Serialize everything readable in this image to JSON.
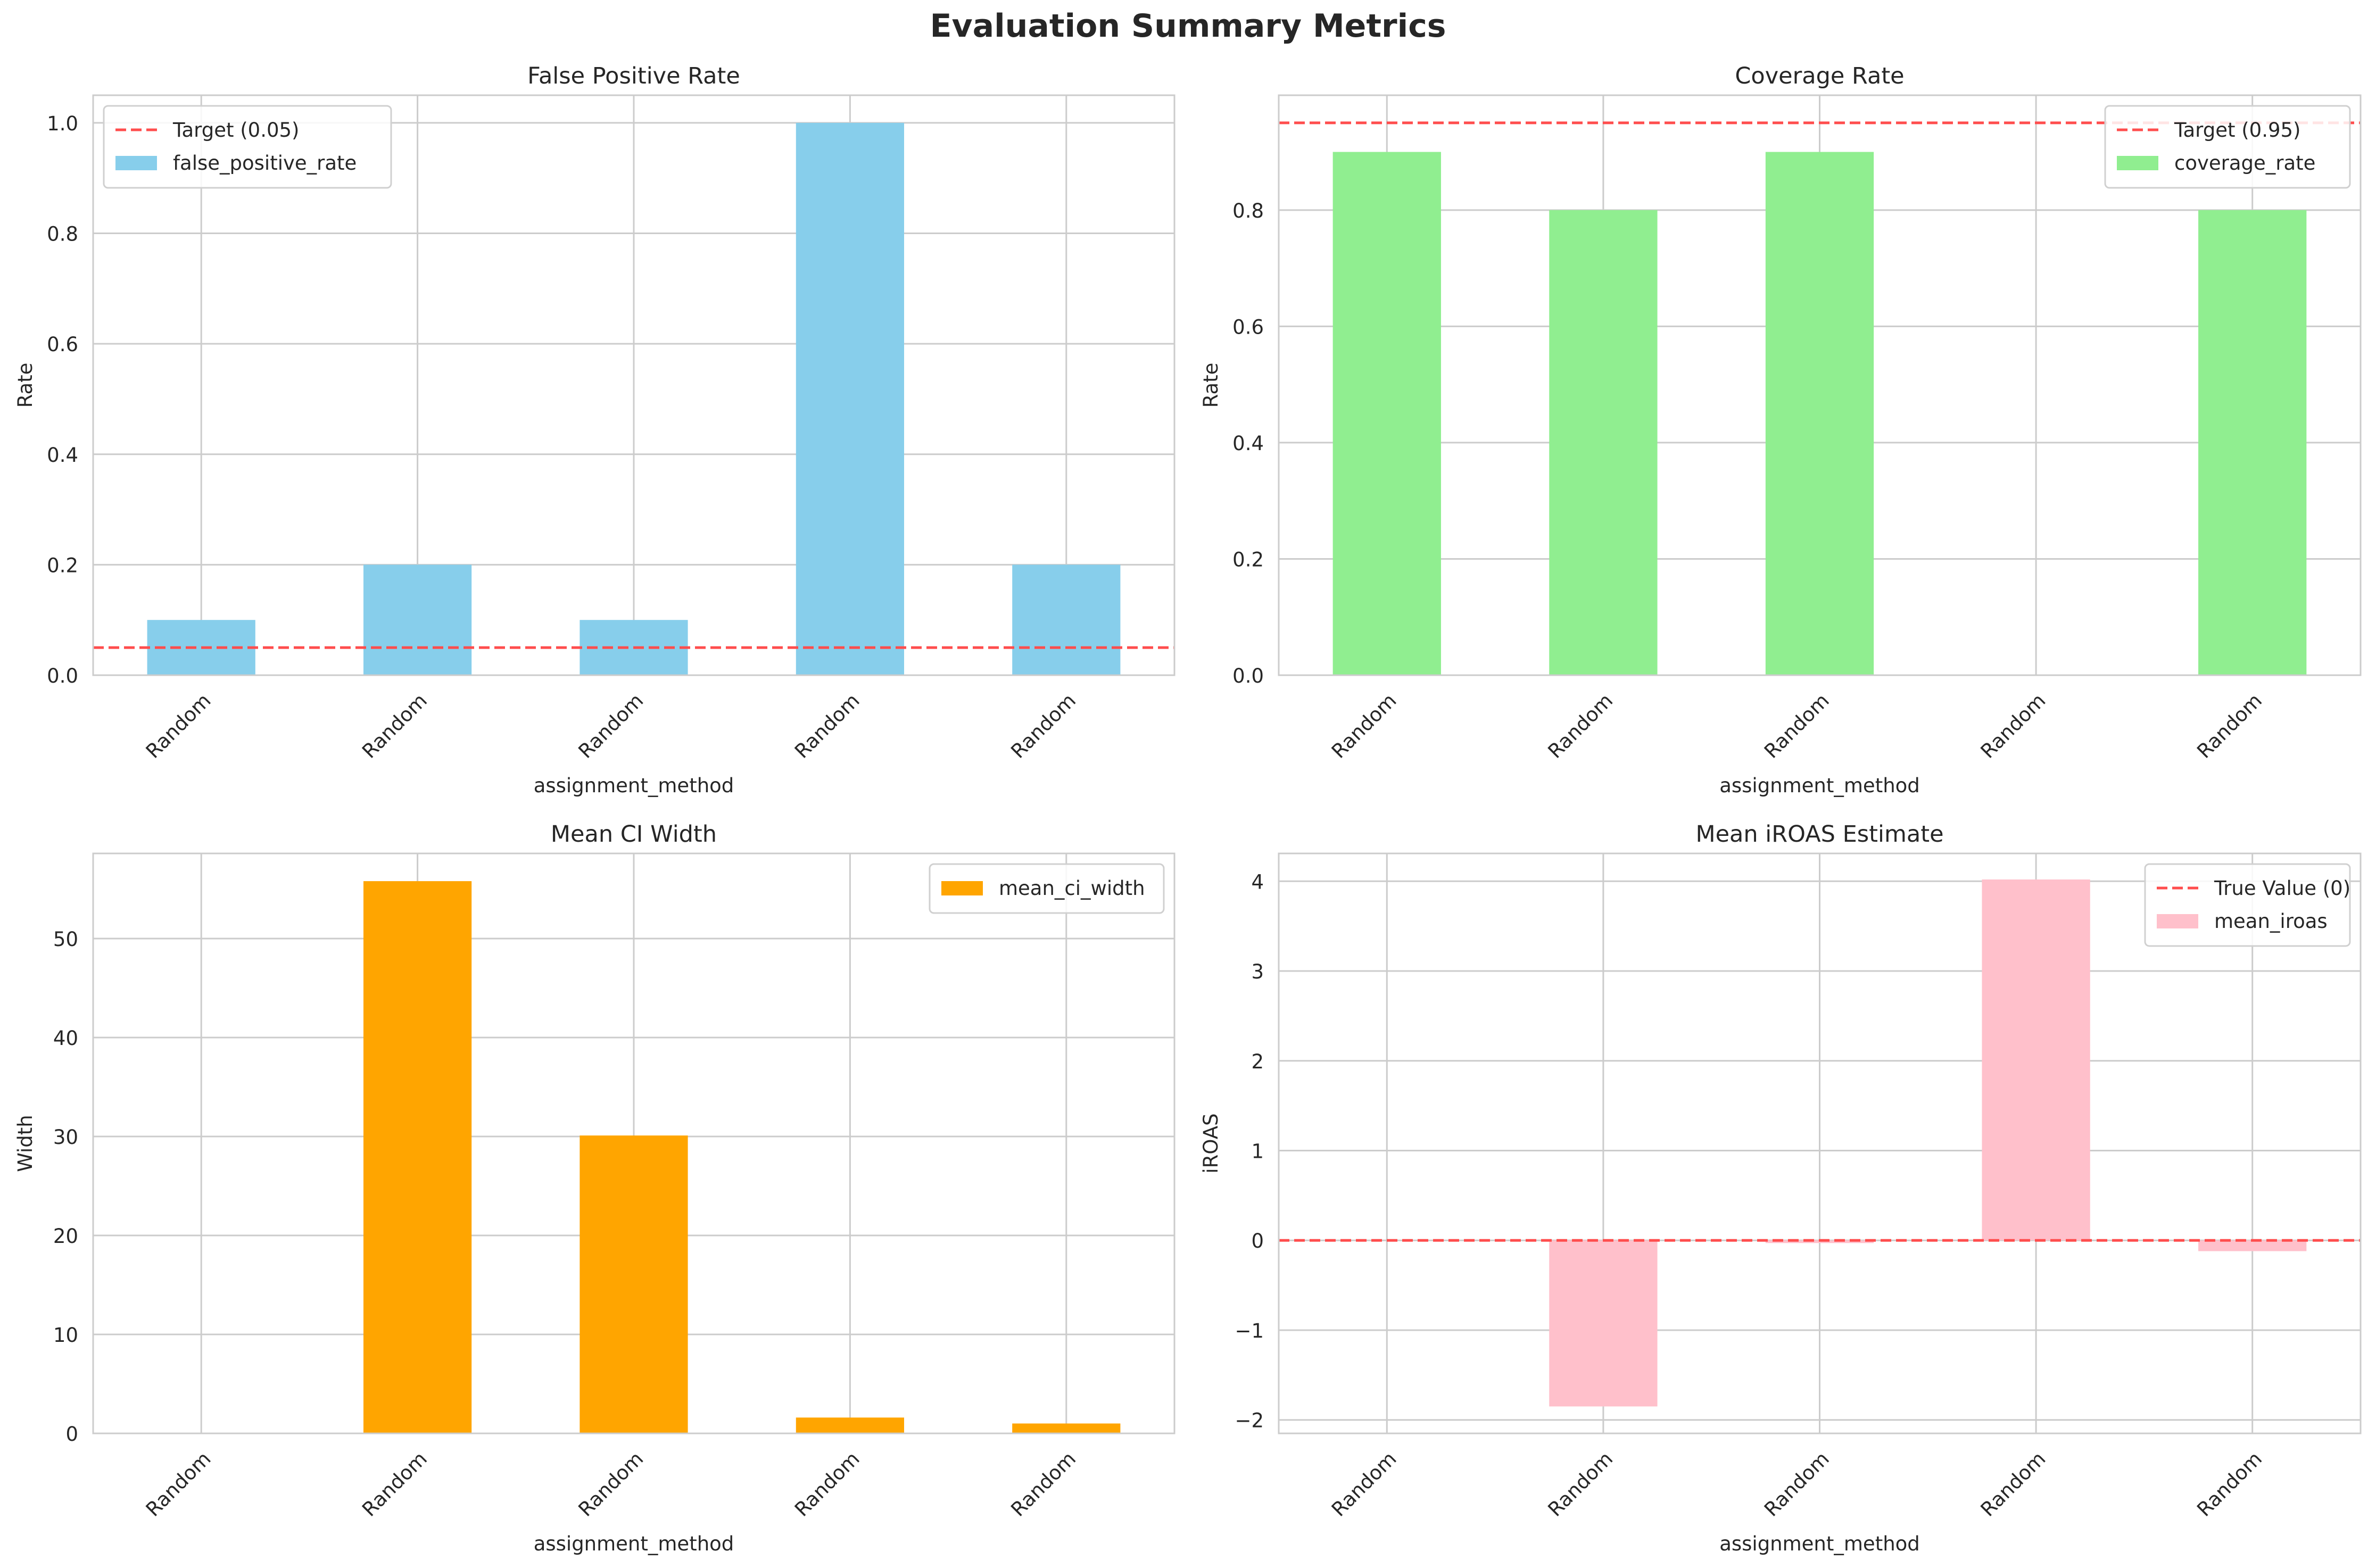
{
  "figure": {
    "title": "Evaluation Summary Metrics"
  },
  "chart_data": [
    {
      "type": "bar",
      "title": "False Positive Rate",
      "xlabel": "assignment_method",
      "ylabel": "Rate",
      "categories": [
        "Random",
        "Random",
        "Random",
        "Random",
        "Random"
      ],
      "series": [
        {
          "name": "false_positive_rate",
          "values": [
            0.1,
            0.2,
            0.1,
            1.0,
            0.2
          ],
          "color": "#87CEEB"
        }
      ],
      "reference_line": {
        "label": "Target (0.05)",
        "y": 0.05,
        "color": "#ff4d4d",
        "style": "dashed"
      },
      "ylim": [
        0,
        1.05
      ],
      "yticks": [
        0.0,
        0.2,
        0.4,
        0.6,
        0.8,
        1.0
      ],
      "ytick_labels": [
        "0.0",
        "0.2",
        "0.4",
        "0.6",
        "0.8",
        "1.0"
      ],
      "grid": true,
      "legend": "top-left"
    },
    {
      "type": "bar",
      "title": "Coverage Rate",
      "xlabel": "assignment_method",
      "ylabel": "Rate",
      "categories": [
        "Random",
        "Random",
        "Random",
        "Random",
        "Random"
      ],
      "series": [
        {
          "name": "coverage_rate",
          "values": [
            0.9,
            0.8,
            0.9,
            0.0,
            0.8
          ],
          "color": "#90EE90"
        }
      ],
      "reference_line": {
        "label": "Target (0.95)",
        "y": 0.95,
        "color": "#ff4d4d",
        "style": "dashed"
      },
      "ylim": [
        0,
        0.9975
      ],
      "yticks": [
        0.0,
        0.2,
        0.4,
        0.6,
        0.8
      ],
      "ytick_labels": [
        "0.0",
        "0.2",
        "0.4",
        "0.6",
        "0.8"
      ],
      "grid": true,
      "legend": "top-right"
    },
    {
      "type": "bar",
      "title": "Mean CI Width",
      "xlabel": "assignment_method",
      "ylabel": "Width",
      "categories": [
        "Random",
        "Random",
        "Random",
        "Random",
        "Random"
      ],
      "series": [
        {
          "name": "mean_ci_width",
          "values": [
            0,
            55.8,
            30.1,
            1.6,
            1.0
          ],
          "color": "#FFA500"
        }
      ],
      "reference_line": null,
      "ylim": [
        0,
        58.6
      ],
      "yticks": [
        0,
        10,
        20,
        30,
        40,
        50
      ],
      "ytick_labels": [
        "0",
        "10",
        "20",
        "30",
        "40",
        "50"
      ],
      "grid": true,
      "legend": "top-right"
    },
    {
      "type": "bar",
      "title": "Mean iROAS Estimate",
      "xlabel": "assignment_method",
      "ylabel": "iROAS",
      "categories": [
        "Random",
        "Random",
        "Random",
        "Random",
        "Random"
      ],
      "series": [
        {
          "name": "mean_iroas",
          "values": [
            0,
            -1.85,
            -0.03,
            4.02,
            -0.12
          ],
          "color": "#FFC0CB"
        }
      ],
      "reference_line": {
        "label": "True Value (0)",
        "y": 0,
        "color": "#ff4d4d",
        "style": "dashed"
      },
      "ylim": [
        -2.15,
        4.31
      ],
      "yticks": [
        -2,
        -1,
        0,
        1,
        2,
        3,
        4
      ],
      "ytick_labels": [
        "−2",
        "−1",
        "0",
        "1",
        "2",
        "3",
        "4"
      ],
      "grid": true,
      "legend": "top-right"
    }
  ]
}
